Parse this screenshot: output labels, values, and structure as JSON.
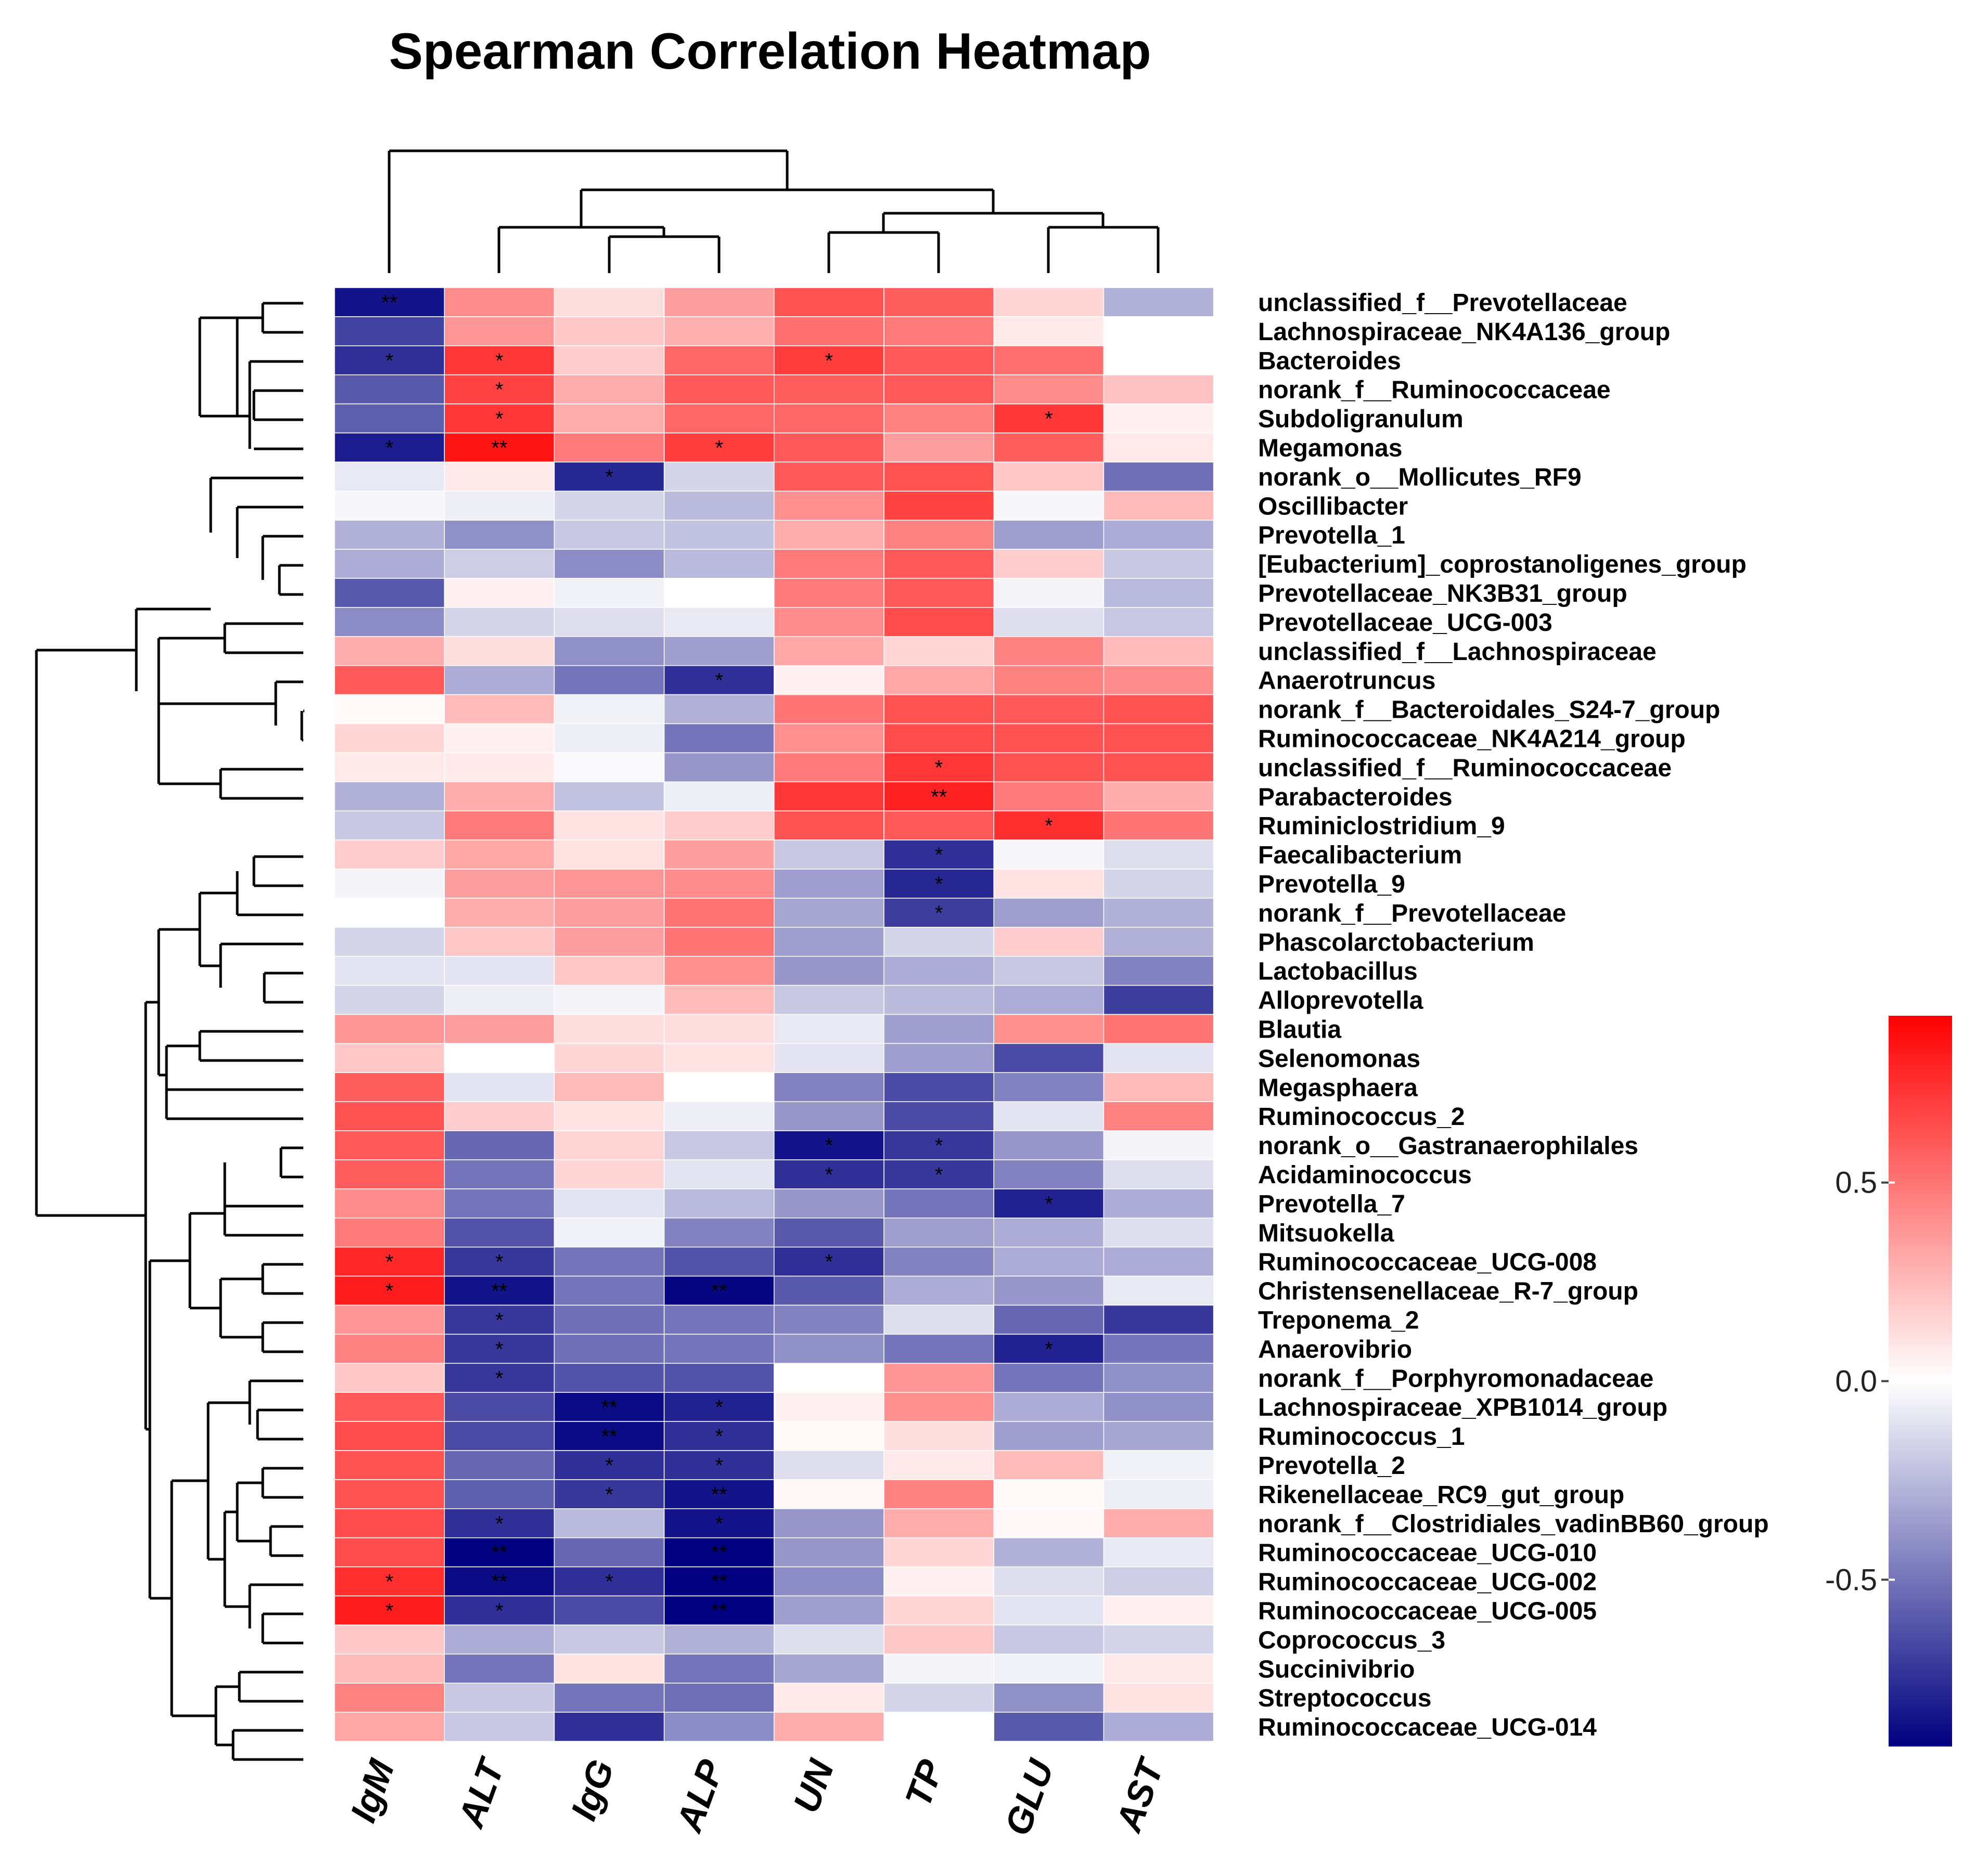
{
  "chart_data": {
    "type": "heatmap",
    "title": "Spearman Correlation Heatmap",
    "columns": [
      "IgM",
      "ALT",
      "IgG",
      "ALP",
      "UN",
      "TP",
      "GLU",
      "AST"
    ],
    "rows": [
      "unclassified_f__Prevotellaceae",
      "Lachnospiraceae_NK4A136_group",
      "Bacteroides",
      "norank_f__Ruminococcaceae",
      "Subdoligranulum",
      "Megamonas",
      "norank_o__Mollicutes_RF9",
      "Oscillibacter",
      "Prevotella_1",
      "[Eubacterium]_coprostanoligenes_group",
      "Prevotellaceae_NK3B31_group",
      "Prevotellaceae_UCG-003",
      "unclassified_f__Lachnospiraceae",
      "Anaerotruncus",
      "norank_f__Bacteroidales_S24-7_group",
      "Ruminococcaceae_NK4A214_group",
      "unclassified_f__Ruminococcaceae",
      "Parabacteroides",
      "Ruminiclostridium_9",
      "Faecalibacterium",
      "Prevotella_9",
      "norank_f__Prevotellaceae",
      "Phascolarctobacterium",
      "Lactobacillus",
      "Alloprevotella",
      "Blautia",
      "Selenomonas",
      "Megasphaera",
      "Ruminococcus_2",
      "norank_o__Gastranaerophilales",
      "Acidaminococcus",
      "Prevotella_7",
      "Mitsuokella",
      "Ruminococcaceae_UCG-008",
      "Christensenellaceae_R-7_group",
      "Treponema_2",
      "Anaerovibrio",
      "norank_f__Porphyromonadaceae",
      "Lachnospiraceae_XPB1014_group",
      "Ruminococcus_1",
      "Prevotella_2",
      "Rikenellaceae_RC9_gut_group",
      "norank_f__Clostridiales_vadinBB60_group",
      "Ruminococcaceae_UCG-010",
      "Ruminococcaceae_UCG-002",
      "Ruminococcaceae_UCG-005",
      "Coprococcus_3",
      "Succinivibrio",
      "Streptococcus",
      "Ruminococcaceae_UCG-014"
    ],
    "values": [
      [
        -0.85,
        0.42,
        0.12,
        0.35,
        0.62,
        0.58,
        0.15,
        -0.28
      ],
      [
        -0.68,
        0.38,
        0.2,
        0.28,
        0.52,
        0.48,
        0.08,
        0.0
      ],
      [
        -0.75,
        0.72,
        0.18,
        0.55,
        0.7,
        0.6,
        0.52,
        0.0
      ],
      [
        -0.6,
        0.68,
        0.3,
        0.6,
        0.58,
        0.6,
        0.42,
        0.22
      ],
      [
        -0.58,
        0.72,
        0.3,
        0.55,
        0.55,
        0.45,
        0.72,
        0.05
      ],
      [
        -0.82,
        0.85,
        0.48,
        0.7,
        0.6,
        0.35,
        0.58,
        0.08
      ],
      [
        -0.08,
        0.08,
        -0.78,
        -0.15,
        0.6,
        0.62,
        0.2,
        -0.52
      ],
      [
        -0.03,
        -0.06,
        -0.15,
        -0.25,
        0.4,
        0.68,
        -0.03,
        0.25
      ],
      [
        -0.28,
        -0.4,
        -0.2,
        -0.22,
        0.3,
        0.45,
        -0.35,
        -0.3
      ],
      [
        -0.3,
        -0.18,
        -0.42,
        -0.25,
        0.48,
        0.6,
        0.18,
        -0.2
      ],
      [
        -0.6,
        0.05,
        -0.05,
        0.0,
        0.48,
        0.6,
        -0.04,
        -0.25
      ],
      [
        -0.42,
        -0.15,
        -0.12,
        -0.08,
        0.42,
        0.65,
        -0.12,
        -0.2
      ],
      [
        0.3,
        0.12,
        -0.4,
        -0.35,
        0.32,
        0.15,
        0.45,
        0.25
      ],
      [
        0.6,
        -0.3,
        -0.5,
        -0.75,
        0.05,
        0.32,
        0.45,
        0.42
      ],
      [
        0.02,
        0.25,
        -0.05,
        -0.28,
        0.5,
        0.62,
        0.6,
        0.62
      ],
      [
        0.15,
        0.05,
        -0.06,
        -0.5,
        0.4,
        0.65,
        0.62,
        0.62
      ],
      [
        0.08,
        0.08,
        -0.02,
        -0.38,
        0.48,
        0.72,
        0.62,
        0.62
      ],
      [
        -0.28,
        0.3,
        -0.22,
        -0.06,
        0.72,
        0.8,
        0.48,
        0.3
      ],
      [
        -0.2,
        0.48,
        0.1,
        0.18,
        0.62,
        0.6,
        0.75,
        0.5
      ],
      [
        0.18,
        0.32,
        0.1,
        0.35,
        -0.2,
        -0.75,
        -0.03,
        -0.12
      ],
      [
        -0.04,
        0.35,
        0.38,
        0.42,
        -0.35,
        -0.78,
        0.1,
        -0.15
      ],
      [
        0.0,
        0.3,
        0.35,
        0.5,
        -0.32,
        -0.7,
        -0.35,
        -0.28
      ],
      [
        -0.15,
        0.2,
        0.35,
        0.5,
        -0.35,
        -0.15,
        0.18,
        -0.28
      ],
      [
        -0.1,
        -0.1,
        0.2,
        0.4,
        -0.38,
        -0.3,
        -0.2,
        -0.45
      ],
      [
        -0.15,
        -0.06,
        -0.04,
        0.25,
        -0.2,
        -0.25,
        -0.3,
        -0.7
      ],
      [
        0.38,
        0.35,
        0.12,
        0.12,
        -0.08,
        -0.35,
        0.4,
        0.5
      ],
      [
        0.2,
        0.0,
        0.15,
        0.1,
        -0.1,
        -0.35,
        -0.65,
        -0.1
      ],
      [
        0.58,
        -0.1,
        0.25,
        0.0,
        -0.45,
        -0.65,
        -0.45,
        0.25
      ],
      [
        0.62,
        0.18,
        0.1,
        -0.06,
        -0.38,
        -0.65,
        -0.1,
        0.45
      ],
      [
        0.6,
        -0.55,
        0.15,
        -0.2,
        -0.85,
        -0.72,
        -0.38,
        -0.04
      ],
      [
        0.58,
        -0.5,
        0.15,
        -0.1,
        -0.75,
        -0.72,
        -0.45,
        -0.12
      ],
      [
        0.42,
        -0.5,
        -0.1,
        -0.25,
        -0.38,
        -0.5,
        -0.8,
        -0.3
      ],
      [
        0.48,
        -0.62,
        -0.05,
        -0.45,
        -0.6,
        -0.35,
        -0.3,
        -0.12
      ],
      [
        0.78,
        -0.72,
        -0.5,
        -0.62,
        -0.75,
        -0.45,
        -0.3,
        -0.3
      ],
      [
        0.82,
        -0.85,
        -0.5,
        -0.9,
        -0.6,
        -0.3,
        -0.38,
        -0.08
      ],
      [
        0.38,
        -0.72,
        -0.52,
        -0.5,
        -0.45,
        -0.12,
        -0.55,
        -0.72
      ],
      [
        0.45,
        -0.72,
        -0.52,
        -0.5,
        -0.4,
        -0.5,
        -0.8,
        -0.5
      ],
      [
        0.2,
        -0.72,
        -0.62,
        -0.62,
        0.0,
        0.38,
        -0.5,
        -0.4
      ],
      [
        0.6,
        -0.65,
        -0.88,
        -0.8,
        0.05,
        0.4,
        -0.3,
        -0.4
      ],
      [
        0.65,
        -0.65,
        -0.88,
        -0.75,
        0.02,
        0.12,
        -0.35,
        -0.32
      ],
      [
        0.62,
        -0.55,
        -0.75,
        -0.75,
        -0.12,
        0.08,
        0.25,
        -0.05
      ],
      [
        0.62,
        -0.58,
        -0.72,
        -0.85,
        0.03,
        0.45,
        0.02,
        -0.06
      ],
      [
        0.65,
        -0.75,
        -0.25,
        -0.85,
        -0.38,
        0.3,
        0.03,
        0.3
      ],
      [
        0.65,
        -0.92,
        -0.55,
        -0.92,
        -0.38,
        0.15,
        -0.28,
        -0.08
      ],
      [
        0.75,
        -0.88,
        -0.75,
        -0.92,
        -0.42,
        0.05,
        -0.12,
        -0.18
      ],
      [
        0.82,
        -0.75,
        -0.65,
        -0.92,
        -0.35,
        0.15,
        -0.1,
        0.05
      ],
      [
        0.2,
        -0.3,
        -0.2,
        -0.28,
        -0.12,
        0.2,
        -0.2,
        -0.15
      ],
      [
        0.25,
        -0.5,
        0.1,
        -0.5,
        -0.32,
        -0.04,
        -0.05,
        0.08
      ],
      [
        0.45,
        -0.2,
        -0.5,
        -0.52,
        0.08,
        -0.15,
        -0.4,
        0.1
      ],
      [
        0.32,
        -0.2,
        -0.75,
        -0.42,
        0.3,
        0.0,
        -0.6,
        -0.3
      ]
    ],
    "significance": [
      [
        "**",
        "",
        "",
        "",
        "",
        "",
        "",
        ""
      ],
      [
        "",
        "",
        "",
        "",
        "",
        "",
        "",
        ""
      ],
      [
        "*",
        "*",
        "",
        "",
        "*",
        "",
        "",
        ""
      ],
      [
        "",
        "*",
        "",
        "",
        "",
        "",
        "",
        ""
      ],
      [
        "",
        "*",
        "",
        "",
        "",
        "",
        "*",
        ""
      ],
      [
        "*",
        "**",
        "",
        "*",
        "",
        "",
        "",
        ""
      ],
      [
        "",
        "",
        "*",
        "",
        "",
        "",
        "",
        ""
      ],
      [
        "",
        "",
        "",
        "",
        "",
        "",
        "",
        ""
      ],
      [
        "",
        "",
        "",
        "",
        "",
        "",
        "",
        ""
      ],
      [
        "",
        "",
        "",
        "",
        "",
        "",
        "",
        ""
      ],
      [
        "",
        "",
        "",
        "",
        "",
        "",
        "",
        ""
      ],
      [
        "",
        "",
        "",
        "",
        "",
        "",
        "",
        ""
      ],
      [
        "",
        "",
        "",
        "",
        "",
        "",
        "",
        ""
      ],
      [
        "",
        "",
        "",
        "*",
        "",
        "",
        "",
        ""
      ],
      [
        "",
        "",
        "",
        "",
        "",
        "",
        "",
        ""
      ],
      [
        "",
        "",
        "",
        "",
        "",
        "",
        "",
        ""
      ],
      [
        "",
        "",
        "",
        "",
        "",
        "*",
        "",
        ""
      ],
      [
        "",
        "",
        "",
        "",
        "",
        "**",
        "",
        ""
      ],
      [
        "",
        "",
        "",
        "",
        "",
        "",
        "*",
        ""
      ],
      [
        "",
        "",
        "",
        "",
        "",
        "*",
        "",
        ""
      ],
      [
        "",
        "",
        "",
        "",
        "",
        "*",
        "",
        ""
      ],
      [
        "",
        "",
        "",
        "",
        "",
        "*",
        "",
        ""
      ],
      [
        "",
        "",
        "",
        "",
        "",
        "",
        "",
        ""
      ],
      [
        "",
        "",
        "",
        "",
        "",
        "",
        "",
        ""
      ],
      [
        "",
        "",
        "",
        "",
        "",
        "",
        "",
        ""
      ],
      [
        "",
        "",
        "",
        "",
        "",
        "",
        "",
        ""
      ],
      [
        "",
        "",
        "",
        "",
        "",
        "",
        "",
        ""
      ],
      [
        "",
        "",
        "",
        "",
        "",
        "",
        "",
        ""
      ],
      [
        "",
        "",
        "",
        "",
        "",
        "",
        "",
        ""
      ],
      [
        "",
        "",
        "",
        "",
        "*",
        "*",
        "",
        ""
      ],
      [
        "",
        "",
        "",
        "",
        "*",
        "*",
        "",
        ""
      ],
      [
        "",
        "",
        "",
        "",
        "",
        "",
        "*",
        ""
      ],
      [
        "",
        "",
        "",
        "",
        "",
        "",
        "",
        ""
      ],
      [
        "*",
        "*",
        "",
        "",
        "*",
        "",
        "",
        ""
      ],
      [
        "*",
        "**",
        "",
        "**",
        "",
        "",
        "",
        ""
      ],
      [
        "",
        "*",
        "",
        "",
        "",
        "",
        "",
        ""
      ],
      [
        "",
        "*",
        "",
        "",
        "",
        "",
        "*",
        ""
      ],
      [
        "",
        "*",
        "",
        "",
        "",
        "",
        "",
        ""
      ],
      [
        "",
        "",
        "**",
        "*",
        "",
        "",
        "",
        ""
      ],
      [
        "",
        "",
        "**",
        "*",
        "",
        "",
        "",
        ""
      ],
      [
        "",
        "",
        "*",
        "*",
        "",
        "",
        "",
        ""
      ],
      [
        "",
        "",
        "*",
        "**",
        "",
        "",
        "",
        ""
      ],
      [
        "",
        "*",
        "",
        "*",
        "",
        "",
        "",
        ""
      ],
      [
        "",
        "**",
        "",
        "**",
        "",
        "",
        "",
        ""
      ],
      [
        "*",
        "**",
        "*",
        "**",
        "",
        "",
        "",
        ""
      ],
      [
        "*",
        "*",
        "",
        "**",
        "",
        "",
        "",
        ""
      ],
      [
        "",
        "",
        "",
        "",
        "",
        "",
        "",
        ""
      ],
      [
        "",
        "",
        "",
        "",
        "",
        "",
        "",
        ""
      ],
      [
        "",
        "",
        "",
        "",
        "",
        "",
        "",
        ""
      ],
      [
        "",
        "",
        "",
        "",
        "",
        "",
        "",
        ""
      ]
    ],
    "colorbar": {
      "range": [
        -0.92,
        0.92
      ],
      "ticks": [
        0.5,
        0.0,
        -0.5
      ],
      "tick_labels": [
        "0.5",
        "0.0",
        "-0.5"
      ],
      "low_color": "#000080",
      "mid_color": "#ffffff",
      "high_color": "#ff0000"
    }
  }
}
